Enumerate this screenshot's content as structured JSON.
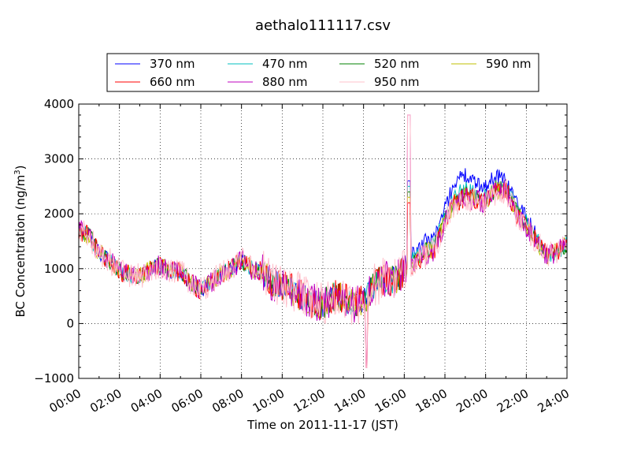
{
  "chart_data": {
    "type": "line",
    "title": "aethalo111117.csv",
    "xlabel": "Time on 2011-11-17 (JST)",
    "ylabel": "BC Concentration (ng/m",
    "ylabel_sup": "3",
    "ylabel_suffix": ")",
    "xlim": [
      0,
      24
    ],
    "ylim": [
      -1000,
      4000
    ],
    "x_ticks": [
      0,
      2,
      4,
      6,
      8,
      10,
      12,
      14,
      16,
      18,
      20,
      22,
      24
    ],
    "x_tick_labels": [
      "00:00",
      "02:00",
      "04:00",
      "06:00",
      "08:00",
      "10:00",
      "12:00",
      "14:00",
      "16:00",
      "18:00",
      "20:00",
      "22:00",
      "24:00"
    ],
    "y_ticks": [
      -1000,
      0,
      1000,
      2000,
      3000,
      4000
    ],
    "y_tick_labels": [
      "−1000",
      "0",
      "1000",
      "2000",
      "3000",
      "4000"
    ],
    "grid": true,
    "legend_placement": "top, above plot, 4 columns",
    "series": [
      {
        "name": "370 nm",
        "color": "#0000ff",
        "noise": 140,
        "offset": 0,
        "values": [
          1700,
          1600,
          1300,
          1150,
          950,
          900,
          850,
          1000,
          1050,
          950,
          950,
          750,
          600,
          750,
          900,
          1000,
          1150,
          1000,
          950,
          750,
          700,
          600,
          500,
          400,
          350,
          500,
          450,
          350,
          400,
          700,
          800,
          800,
          1050,
          1300,
          1500,
          1600,
          2100,
          2600,
          2700,
          2550,
          2500,
          2700,
          2650,
          2200,
          1950,
          1600,
          1250,
          1300,
          1450
        ]
      },
      {
        "name": "470 nm",
        "color": "#00bfbf",
        "noise": 150,
        "offset": 0,
        "values": [
          1700,
          1600,
          1300,
          1150,
          950,
          900,
          850,
          1000,
          1050,
          950,
          950,
          750,
          600,
          750,
          900,
          1000,
          1150,
          1000,
          950,
          750,
          700,
          600,
          500,
          400,
          350,
          500,
          450,
          350,
          400,
          700,
          800,
          800,
          1000,
          1200,
          1350,
          1450,
          1950,
          2350,
          2450,
          2350,
          2300,
          2500,
          2500,
          2100,
          1850,
          1550,
          1250,
          1300,
          1450
        ]
      },
      {
        "name": "520 nm",
        "color": "#008000",
        "noise": 160,
        "offset": 0,
        "values": [
          1700,
          1600,
          1300,
          1150,
          950,
          900,
          850,
          1000,
          1050,
          950,
          950,
          750,
          600,
          750,
          900,
          1000,
          1150,
          1000,
          950,
          750,
          700,
          600,
          500,
          400,
          350,
          500,
          450,
          350,
          400,
          700,
          800,
          800,
          950,
          1150,
          1300,
          1400,
          1900,
          2250,
          2350,
          2300,
          2250,
          2450,
          2450,
          2050,
          1800,
          1500,
          1250,
          1300,
          1450
        ]
      },
      {
        "name": "590 nm",
        "color": "#bfbf00",
        "noise": 170,
        "offset": 0,
        "values": [
          1700,
          1600,
          1300,
          1150,
          950,
          900,
          850,
          1000,
          1050,
          950,
          950,
          750,
          600,
          750,
          900,
          1000,
          1150,
          1000,
          950,
          750,
          700,
          600,
          500,
          400,
          350,
          500,
          450,
          350,
          400,
          700,
          800,
          800,
          950,
          1100,
          1280,
          1380,
          1880,
          2220,
          2320,
          2280,
          2230,
          2420,
          2430,
          2030,
          1780,
          1500,
          1250,
          1300,
          1450
        ]
      },
      {
        "name": "660 nm",
        "color": "#ff0000",
        "noise": 180,
        "offset": 0,
        "values": [
          1700,
          1600,
          1300,
          1150,
          950,
          900,
          850,
          1000,
          1050,
          950,
          950,
          750,
          600,
          750,
          900,
          1000,
          1150,
          1000,
          950,
          750,
          700,
          600,
          500,
          400,
          350,
          500,
          450,
          350,
          400,
          700,
          800,
          800,
          950,
          1100,
          1260,
          1360,
          1860,
          2200,
          2300,
          2270,
          2220,
          2420,
          2460,
          2020,
          1770,
          1500,
          1250,
          1300,
          1450
        ]
      },
      {
        "name": "880 nm",
        "color": "#bf00bf",
        "noise": 200,
        "offset": 0,
        "values": [
          1700,
          1600,
          1300,
          1150,
          950,
          900,
          850,
          1000,
          1050,
          950,
          950,
          750,
          600,
          750,
          900,
          1000,
          1150,
          1000,
          950,
          750,
          700,
          600,
          500,
          400,
          350,
          500,
          450,
          350,
          400,
          700,
          800,
          800,
          950,
          1100,
          1240,
          1340,
          1840,
          2180,
          2280,
          2250,
          2200,
          2400,
          2420,
          2000,
          1760,
          1500,
          1250,
          1300,
          1450
        ]
      },
      {
        "name": "950 nm",
        "color": "#ffc0cb",
        "noise": 240,
        "offset": 0,
        "values": [
          1700,
          1600,
          1300,
          1150,
          950,
          900,
          850,
          1000,
          1050,
          950,
          950,
          750,
          600,
          750,
          900,
          1000,
          1150,
          1000,
          950,
          750,
          700,
          600,
          500,
          400,
          350,
          500,
          450,
          350,
          400,
          700,
          800,
          800,
          950,
          1100,
          1230,
          1330,
          1830,
          2170,
          2270,
          2240,
          2190,
          2400,
          2400,
          1990,
          1750,
          1500,
          1250,
          1300,
          1450
        ]
      }
    ],
    "x_step_hours": 0.5
  }
}
